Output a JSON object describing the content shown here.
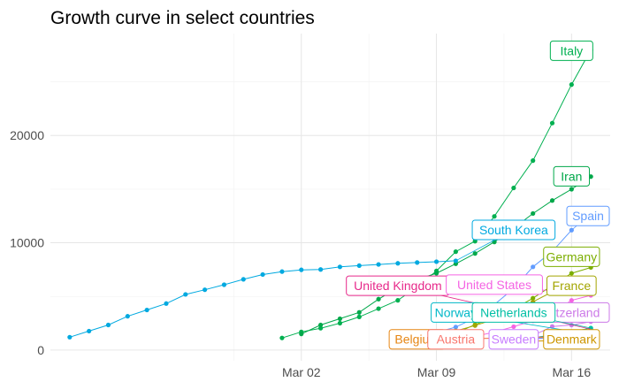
{
  "chart_data": {
    "type": "line",
    "title": "Growth curve in select countries",
    "xlabel": "",
    "ylabel": "",
    "x_ticks": [
      {
        "date": "2020-03-02",
        "label": "Mar 02"
      },
      {
        "date": "2020-03-09",
        "label": "Mar 09"
      },
      {
        "date": "2020-03-16",
        "label": "Mar 16"
      }
    ],
    "xlim": [
      "2020-02-18",
      "2020-03-18"
    ],
    "y_ticks": [
      0,
      10000,
      20000
    ],
    "ylim": [
      -1000,
      29500
    ],
    "grid": true,
    "legend": "none",
    "series": [
      {
        "name": "Italy",
        "color": "#00b050",
        "points": [
          [
            "2020-03-01",
            1128
          ],
          [
            "2020-03-02",
            1694
          ],
          [
            "2020-03-03",
            2036
          ],
          [
            "2020-03-04",
            2502
          ],
          [
            "2020-03-05",
            3089
          ],
          [
            "2020-03-06",
            3858
          ],
          [
            "2020-03-07",
            4636
          ],
          [
            "2020-03-08",
            5883
          ],
          [
            "2020-03-09",
            7375
          ],
          [
            "2020-03-10",
            9172
          ],
          [
            "2020-03-11",
            10149
          ],
          [
            "2020-03-12",
            12462
          ],
          [
            "2020-03-13",
            15113
          ],
          [
            "2020-03-14",
            17660
          ],
          [
            "2020-03-15",
            21157
          ],
          [
            "2020-03-16",
            24747
          ],
          [
            "2020-03-17",
            27980
          ]
        ]
      },
      {
        "name": "Iran",
        "color": "#00a84a",
        "points": [
          [
            "2020-03-02",
            1501
          ],
          [
            "2020-03-03",
            2336
          ],
          [
            "2020-03-04",
            2922
          ],
          [
            "2020-03-05",
            3513
          ],
          [
            "2020-03-06",
            4747
          ],
          [
            "2020-03-07",
            5823
          ],
          [
            "2020-03-08",
            6566
          ],
          [
            "2020-03-09",
            7161
          ],
          [
            "2020-03-10",
            8042
          ],
          [
            "2020-03-11",
            9000
          ],
          [
            "2020-03-12",
            10075
          ],
          [
            "2020-03-13",
            11364
          ],
          [
            "2020-03-14",
            12729
          ],
          [
            "2020-03-15",
            13938
          ],
          [
            "2020-03-16",
            14991
          ],
          [
            "2020-03-17",
            16169
          ]
        ]
      },
      {
        "name": "South Korea",
        "color": "#00a9e0",
        "points": [
          [
            "2020-02-19",
            1200
          ],
          [
            "2020-02-20",
            1766
          ],
          [
            "2020-02-21",
            2337
          ],
          [
            "2020-02-22",
            3150
          ],
          [
            "2020-02-23",
            3736
          ],
          [
            "2020-02-24",
            4335
          ],
          [
            "2020-02-25",
            5186
          ],
          [
            "2020-02-26",
            5621
          ],
          [
            "2020-02-27",
            6088
          ],
          [
            "2020-02-28",
            6593
          ],
          [
            "2020-02-29",
            7041
          ],
          [
            "2020-03-01",
            7313
          ],
          [
            "2020-03-02",
            7478
          ],
          [
            "2020-03-03",
            7513
          ],
          [
            "2020-03-04",
            7755
          ],
          [
            "2020-03-05",
            7869
          ],
          [
            "2020-03-06",
            7979
          ],
          [
            "2020-03-07",
            8086
          ],
          [
            "2020-03-08",
            8162
          ],
          [
            "2020-03-09",
            8236
          ],
          [
            "2020-03-10",
            8320
          ]
        ]
      },
      {
        "name": "Spain",
        "color": "#619cff",
        "points": [
          [
            "2020-03-09",
            1639
          ],
          [
            "2020-03-10",
            2140
          ],
          [
            "2020-03-11",
            3004
          ],
          [
            "2020-03-12",
            4231
          ],
          [
            "2020-03-13",
            5753
          ],
          [
            "2020-03-14",
            7753
          ],
          [
            "2020-03-15",
            9191
          ],
          [
            "2020-03-16",
            11178
          ]
        ]
      },
      {
        "name": "Germany",
        "color": "#7cae00",
        "points": [
          [
            "2020-03-09",
            1296
          ],
          [
            "2020-03-10",
            1567
          ],
          [
            "2020-03-11",
            2369
          ],
          [
            "2020-03-12",
            3062
          ],
          [
            "2020-03-13",
            3795
          ],
          [
            "2020-03-14",
            4838
          ],
          [
            "2020-03-15",
            6012
          ],
          [
            "2020-03-16",
            7156
          ],
          [
            "2020-03-17",
            7700
          ]
        ]
      },
      {
        "name": "France",
        "color": "#a3a500",
        "points": [
          [
            "2020-03-08",
            1126
          ],
          [
            "2020-03-09",
            1412
          ],
          [
            "2020-03-10",
            1784
          ],
          [
            "2020-03-11",
            2281
          ],
          [
            "2020-03-12",
            2876
          ],
          [
            "2020-03-13",
            3661
          ],
          [
            "2020-03-14",
            4499
          ],
          [
            "2020-03-15",
            5423
          ],
          [
            "2020-03-16",
            6633
          ]
        ]
      },
      {
        "name": "United States",
        "color": "#f564e3",
        "points": [
          [
            "2020-03-11",
            1281
          ],
          [
            "2020-03-12",
            1663
          ],
          [
            "2020-03-13",
            2179
          ],
          [
            "2020-03-14",
            2726
          ],
          [
            "2020-03-15",
            3499
          ],
          [
            "2020-03-16",
            4632
          ],
          [
            "2020-03-17",
            5100
          ]
        ]
      },
      {
        "name": "United Kingdom",
        "color": "#e7298a",
        "points": [
          [
            "2020-03-14",
            1140
          ],
          [
            "2020-03-15",
            1391
          ],
          [
            "2020-03-16",
            1543
          ],
          [
            "2020-03-17",
            1950
          ]
        ]
      },
      {
        "name": "Switzerland",
        "color": "#cc79e8",
        "points": [
          [
            "2020-03-13",
            1139
          ],
          [
            "2020-03-14",
            1359
          ],
          [
            "2020-03-15",
            2200
          ],
          [
            "2020-03-16",
            2330
          ],
          [
            "2020-03-17",
            2650
          ]
        ]
      },
      {
        "name": "Netherlands",
        "color": "#00bfa5",
        "points": [
          [
            "2020-03-14",
            1135
          ],
          [
            "2020-03-15",
            1413
          ],
          [
            "2020-03-16",
            1705
          ],
          [
            "2020-03-17",
            2051
          ]
        ]
      },
      {
        "name": "Norway",
        "color": "#00b8c8",
        "points": [
          [
            "2020-03-14",
            1090
          ],
          [
            "2020-03-15",
            1221
          ],
          [
            "2020-03-16",
            1333
          ],
          [
            "2020-03-17",
            1463
          ]
        ]
      },
      {
        "name": "Belgium",
        "color": "#e68613",
        "points": [
          [
            "2020-03-15",
            886
          ],
          [
            "2020-03-16",
            1085
          ],
          [
            "2020-03-17",
            1243
          ]
        ]
      },
      {
        "name": "Austria",
        "color": "#f8766d",
        "points": [
          [
            "2020-03-15",
            860
          ],
          [
            "2020-03-16",
            1018
          ],
          [
            "2020-03-17",
            1332
          ]
        ]
      },
      {
        "name": "Sweden",
        "color": "#c77cff",
        "points": [
          [
            "2020-03-15",
            1022
          ],
          [
            "2020-03-16",
            1103
          ],
          [
            "2020-03-17",
            1190
          ]
        ]
      },
      {
        "name": "Denmark",
        "color": "#cd9600",
        "points": [
          [
            "2020-03-14",
            827
          ],
          [
            "2020-03-15",
            864
          ],
          [
            "2020-03-16",
            977
          ],
          [
            "2020-03-17",
            1057
          ]
        ]
      }
    ],
    "labels": [
      {
        "text": "Italy",
        "color": "#00b050",
        "at": [
          "2020-03-16",
          27900
        ]
      },
      {
        "text": "Iran",
        "color": "#00a84a",
        "at": [
          "2020-03-16",
          16200
        ]
      },
      {
        "text": "Spain",
        "color": "#619cff",
        "at": [
          "2020-03-17",
          12500
        ]
      },
      {
        "text": "South Korea",
        "color": "#00a9e0",
        "at": [
          "2020-03-13",
          11200
        ]
      },
      {
        "text": "Germany",
        "color": "#7cae00",
        "at": [
          "2020-03-16",
          8700
        ]
      },
      {
        "text": "United Kingdom",
        "color": "#e7298a",
        "at": [
          "2020-03-07",
          6000
        ]
      },
      {
        "text": "United States",
        "color": "#f564e3",
        "at": [
          "2020-03-12",
          6100
        ]
      },
      {
        "text": "France",
        "color": "#a3a500",
        "at": [
          "2020-03-16",
          6000
        ]
      },
      {
        "text": "Switzerland",
        "color": "#cc79e8",
        "at": [
          "2020-03-17",
          3500
        ]
      },
      {
        "text": "Norway",
        "color": "#00b8c8",
        "at": [
          "2020-03-10",
          3500
        ]
      },
      {
        "text": "Netherlands",
        "color": "#00bfa5",
        "at": [
          "2020-03-13",
          3500
        ]
      },
      {
        "text": "Belgium",
        "color": "#e68613",
        "at": [
          "2020-03-08",
          1000
        ]
      },
      {
        "text": "Austria",
        "color": "#f8766d",
        "at": [
          "2020-03-10",
          1000
        ]
      },
      {
        "text": "Sweden",
        "color": "#c77cff",
        "at": [
          "2020-03-13",
          1000
        ]
      },
      {
        "text": "Denmark",
        "color": "#cd9600",
        "at": [
          "2020-03-16",
          1000
        ]
      }
    ]
  }
}
